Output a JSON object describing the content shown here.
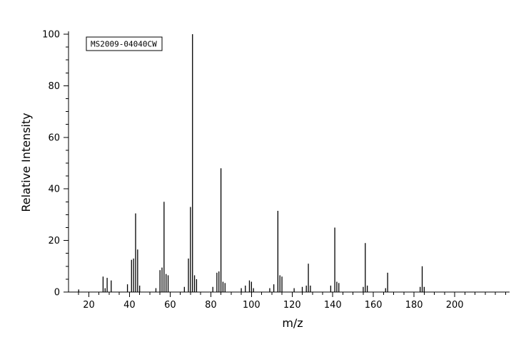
{
  "figure": {
    "id_label": "MS2009-04040CW"
  },
  "chart_data": {
    "type": "bar",
    "subtype": "mass-spectrum",
    "title": "MS2009-04040CW",
    "xlabel": "m/z",
    "ylabel": "Relative Intensity",
    "xlim": [
      10,
      227
    ],
    "ylim": [
      0,
      100
    ],
    "x_major_ticks": [
      20,
      40,
      60,
      80,
      100,
      120,
      140,
      160,
      180,
      200
    ],
    "x_minor_step": 5,
    "x_minor_range": [
      15,
      225
    ],
    "y_major_ticks": [
      0,
      20,
      40,
      60,
      80,
      100
    ],
    "y_minor_step": 5,
    "y_minor_range": [
      5,
      95
    ],
    "grid": false,
    "legend": false,
    "peak_color": "#000000",
    "peaks": [
      [
        15,
        1
      ],
      [
        27,
        6
      ],
      [
        28,
        1.5
      ],
      [
        29,
        5.5
      ],
      [
        31,
        4.5
      ],
      [
        39,
        3
      ],
      [
        41,
        12.5
      ],
      [
        42,
        13
      ],
      [
        43,
        30.5
      ],
      [
        44,
        16.5
      ],
      [
        45,
        2.5
      ],
      [
        53,
        1.5
      ],
      [
        55,
        8.5
      ],
      [
        56,
        9.5
      ],
      [
        57,
        35
      ],
      [
        58,
        7
      ],
      [
        59,
        6.5
      ],
      [
        67,
        2
      ],
      [
        69,
        13
      ],
      [
        70,
        33
      ],
      [
        71,
        100
      ],
      [
        72,
        6.5
      ],
      [
        73,
        5
      ],
      [
        81,
        2
      ],
      [
        83,
        7.5
      ],
      [
        84,
        8
      ],
      [
        85,
        48
      ],
      [
        86,
        4
      ],
      [
        87,
        3.5
      ],
      [
        95,
        1.5
      ],
      [
        97,
        2.5
      ],
      [
        99,
        4.5
      ],
      [
        100,
        4
      ],
      [
        101,
        1.5
      ],
      [
        109,
        1.5
      ],
      [
        111,
        3
      ],
      [
        113,
        31.5
      ],
      [
        114,
        6.5
      ],
      [
        115,
        6
      ],
      [
        121,
        1.5
      ],
      [
        125,
        2
      ],
      [
        127,
        2.5
      ],
      [
        128,
        11
      ],
      [
        129,
        2.5
      ],
      [
        139,
        2.5
      ],
      [
        141,
        25
      ],
      [
        142,
        4
      ],
      [
        143,
        3.5
      ],
      [
        155,
        2
      ],
      [
        156,
        19
      ],
      [
        157,
        2.5
      ],
      [
        166,
        1.5
      ],
      [
        167,
        7.5
      ],
      [
        183,
        2
      ],
      [
        184,
        10
      ],
      [
        185,
        2
      ]
    ]
  }
}
